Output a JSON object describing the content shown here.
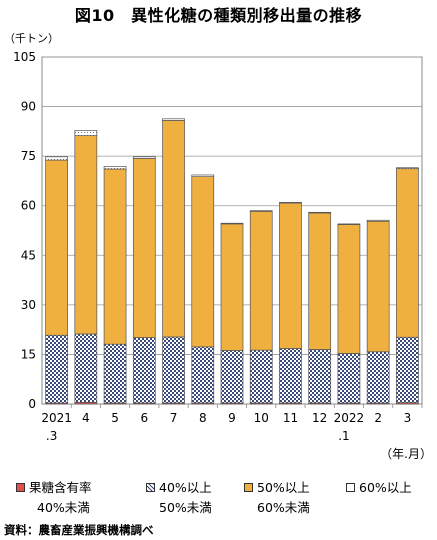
{
  "title": "図10　異性化糖の種類別移出量の推移",
  "unit": "（千トン）",
  "source": "資料：農畜産業振興機構調べ",
  "colors": {
    "fructose_lt40": "#e05050",
    "fructose_40_50": "#c8d4e8",
    "fructose_50_60": "#f0b040",
    "fructose_60_plus": "#ffffff"
  },
  "legend": [
    {
      "key": "fructose_lt40",
      "line1": "果糖含有率",
      "line2": "40%未満"
    },
    {
      "key": "fructose_40_50",
      "line1": "40%以上",
      "line2": "50%未満"
    },
    {
      "key": "fructose_50_60",
      "line1": "50%以上",
      "line2": "60%未満"
    },
    {
      "key": "fructose_60_plus",
      "line1": "60%以上",
      "line2": ""
    }
  ],
  "chart_data": {
    "type": "bar",
    "stacked": true,
    "title": "図10　異性化糖の種類別移出量の推移",
    "ylabel": "（千トン）",
    "xlabel": "（年.月）",
    "ylim": [
      0,
      105
    ],
    "yticks": [
      0,
      15,
      30,
      45,
      60,
      75,
      90,
      105
    ],
    "grid": true,
    "legend_position": "bottom",
    "categories": [
      [
        "2021",
        ".3"
      ],
      [
        "4"
      ],
      [
        "5"
      ],
      [
        "6"
      ],
      [
        "7"
      ],
      [
        "8"
      ],
      [
        "9"
      ],
      [
        "10"
      ],
      [
        "11"
      ],
      [
        "12"
      ],
      [
        "2022",
        ".1"
      ],
      [
        "2"
      ],
      [
        "3"
      ]
    ],
    "series": [
      {
        "key": "fructose_lt40",
        "name": "果糖含有率40%未満",
        "values": [
          0.3,
          0.5,
          0.3,
          0.3,
          0.3,
          0.3,
          0.3,
          0.3,
          0.3,
          0.3,
          0.3,
          0.3,
          0.4
        ]
      },
      {
        "key": "fructose_40_50",
        "name": "40%以上50%未満",
        "values": [
          20.5,
          20.7,
          17.8,
          19.8,
          20.0,
          17.0,
          15.9,
          16.0,
          16.5,
          16.2,
          15.0,
          15.5,
          19.8
        ]
      },
      {
        "key": "fructose_50_60",
        "name": "50%以上60%未満",
        "values": [
          53.0,
          60.0,
          53.0,
          54.2,
          65.5,
          51.5,
          38.3,
          42.0,
          44.0,
          41.3,
          39.0,
          39.5,
          51.0
        ]
      },
      {
        "key": "fructose_60_plus",
        "name": "60%以上",
        "values": [
          1.0,
          1.6,
          0.8,
          0.5,
          0.5,
          0.5,
          0.2,
          0.2,
          0.2,
          0.2,
          0.2,
          0.3,
          0.3
        ]
      }
    ]
  }
}
